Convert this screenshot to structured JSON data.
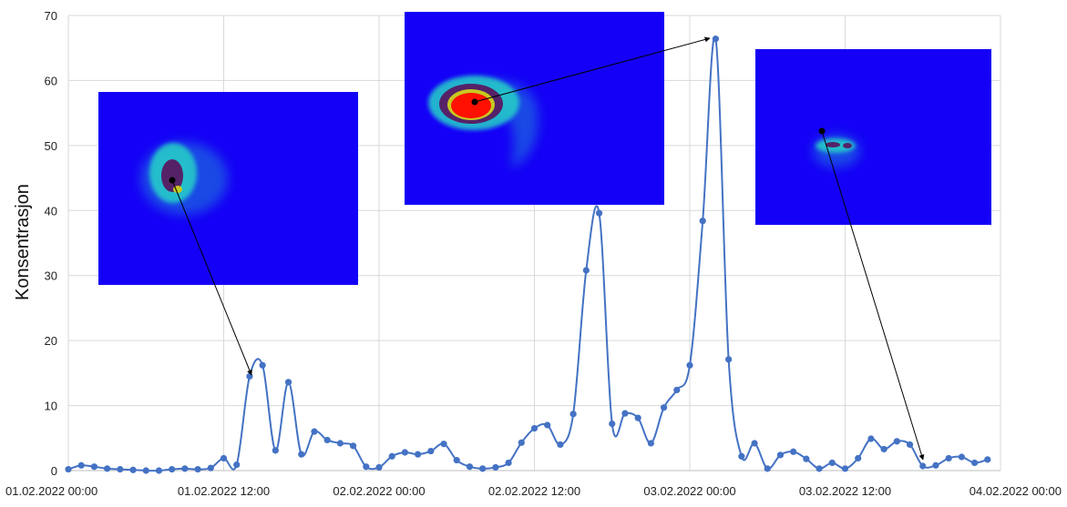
{
  "chart_data": {
    "type": "line",
    "ylabel": "Konsentrasjon",
    "xlabel": "",
    "ylim": [
      0,
      70
    ],
    "yticks": [
      0,
      10,
      20,
      30,
      40,
      50,
      60,
      70
    ],
    "x_tick_labels": [
      "01.02.2022 00:00",
      "01.02.2022 12:00",
      "02.02.2022 00:00",
      "02.02.2022 12:00",
      "03.02.2022 00:00",
      "03.02.2022 12:00",
      "04.02.2022 00:00"
    ],
    "x_range_hours": [
      0,
      72
    ],
    "x_step_hours": 1,
    "grid": true,
    "series": [
      {
        "color": "#4472C4",
        "values": [
          0.2,
          0.8,
          0.6,
          0.3,
          0.2,
          0.1,
          0.0,
          0.0,
          0.2,
          0.3,
          0.2,
          0.4,
          1.9,
          0.9,
          14.5,
          16.2,
          3.1,
          13.6,
          2.5,
          6.0,
          4.7,
          4.2,
          3.8,
          0.6,
          0.5,
          2.2,
          2.8,
          2.5,
          3.0,
          4.1,
          1.6,
          0.6,
          0.3,
          0.5,
          1.2,
          4.3,
          6.5,
          7.0,
          4.0,
          8.7,
          30.8,
          39.6,
          7.2,
          8.8,
          8.1,
          4.2,
          9.7,
          12.4,
          16.2,
          38.4,
          66.4,
          17.1,
          2.2,
          4.2,
          0.3,
          2.4,
          2.9,
          1.8,
          0.3,
          1.2,
          0.3,
          1.9,
          4.9,
          3.3,
          4.5,
          4.0,
          0.7,
          0.8,
          1.9,
          2.1,
          1.2,
          1.7
        ]
      }
    ],
    "annotations": [
      {
        "description": "dispersion map 1",
        "target_index": 14,
        "colors": [
          "#1400f6",
          "#27d2c8",
          "#552267",
          "#c8c820"
        ]
      },
      {
        "description": "dispersion map 2",
        "target_index": 50,
        "colors": [
          "#1400f6",
          "#27d2c8",
          "#552267",
          "#ff1000"
        ]
      },
      {
        "description": "dispersion map 3",
        "target_index": 66,
        "colors": [
          "#1400f6",
          "#27d2c8",
          "#552267"
        ]
      }
    ]
  }
}
